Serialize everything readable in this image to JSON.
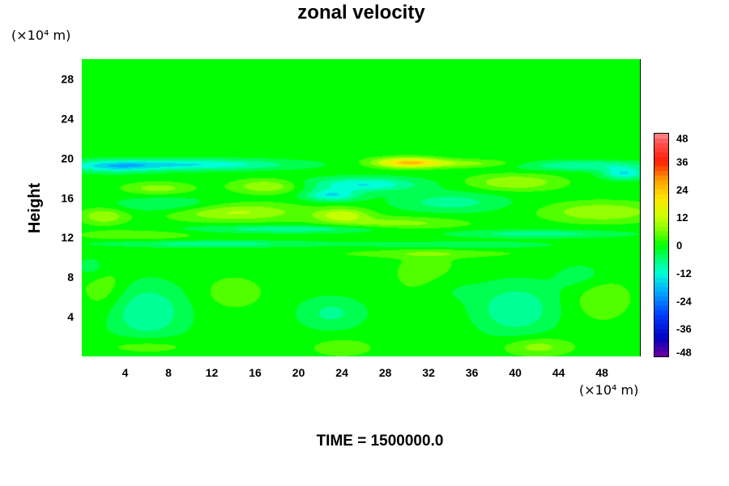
{
  "chart_data": {
    "type": "heatmap",
    "title": "zonal velocity",
    "xlabel": "",
    "ylabel": "Height",
    "x_unit": "(×10⁴ m)",
    "y_unit": "(×10⁴ m)",
    "xlim": [
      0,
      51.5
    ],
    "ylim": [
      0,
      30
    ],
    "x_ticks": [
      4,
      8,
      12,
      16,
      20,
      24,
      28,
      32,
      36,
      40,
      44,
      48
    ],
    "y_ticks": [
      4,
      8,
      12,
      16,
      20,
      24,
      28
    ],
    "colorbar": {
      "min": -48,
      "max": 48,
      "ticks": [
        48,
        36,
        24,
        12,
        0,
        -12,
        -24,
        -36,
        -48
      ]
    },
    "grid": false,
    "background_value": 0,
    "features": [
      {
        "x": 30,
        "y": 19.6,
        "sx": 3,
        "sy": 0.5,
        "v": 22
      },
      {
        "x": 35,
        "y": 19.5,
        "sx": 5,
        "sy": 0.4,
        "v": 8
      },
      {
        "x": 10,
        "y": 19.4,
        "sx": 9,
        "sy": 0.55,
        "v": -14
      },
      {
        "x": 3,
        "y": 19.2,
        "sx": 4,
        "sy": 0.6,
        "v": -12
      },
      {
        "x": 46,
        "y": 19.3,
        "sx": 6,
        "sy": 0.5,
        "v": -10
      },
      {
        "x": 50,
        "y": 18.5,
        "sx": 2,
        "sy": 0.6,
        "v": -14
      },
      {
        "x": 26,
        "y": 17.4,
        "sx": 5,
        "sy": 0.7,
        "v": -14
      },
      {
        "x": 23,
        "y": 16.3,
        "sx": 2.5,
        "sy": 0.6,
        "v": -14
      },
      {
        "x": 17,
        "y": 17.2,
        "sx": 3,
        "sy": 0.7,
        "v": 10
      },
      {
        "x": 40,
        "y": 17.6,
        "sx": 4,
        "sy": 0.8,
        "v": 10
      },
      {
        "x": 7,
        "y": 17.0,
        "sx": 3,
        "sy": 0.6,
        "v": 8
      },
      {
        "x": 14,
        "y": 14.6,
        "sx": 6,
        "sy": 0.9,
        "v": 11
      },
      {
        "x": 2,
        "y": 14.2,
        "sx": 2,
        "sy": 0.8,
        "v": 10
      },
      {
        "x": 24,
        "y": 14.3,
        "sx": 2.5,
        "sy": 0.7,
        "v": 12
      },
      {
        "x": 29,
        "y": 13.4,
        "sx": 6,
        "sy": 0.7,
        "v": 8
      },
      {
        "x": 48,
        "y": 14.6,
        "sx": 5,
        "sy": 1.0,
        "v": 10
      },
      {
        "x": 34,
        "y": 15.6,
        "sx": 5,
        "sy": 1.0,
        "v": -8
      },
      {
        "x": 8,
        "y": 15.3,
        "sx": 5,
        "sy": 0.8,
        "v": -7
      },
      {
        "x": 20,
        "y": 12.9,
        "sx": 10,
        "sy": 0.4,
        "v": -9
      },
      {
        "x": 42,
        "y": 12.4,
        "sx": 8,
        "sy": 0.4,
        "v": -8
      },
      {
        "x": 12,
        "y": 11.4,
        "sx": 10,
        "sy": 0.35,
        "v": -8
      },
      {
        "x": 35,
        "y": 11.3,
        "sx": 8,
        "sy": 0.35,
        "v": -6
      },
      {
        "x": 5,
        "y": 12.3,
        "sx": 5,
        "sy": 0.5,
        "v": 6
      },
      {
        "x": 32,
        "y": 10.4,
        "sx": 8,
        "sy": 0.4,
        "v": 5
      },
      {
        "x": 6,
        "y": 4.5,
        "sx": 3.5,
        "sy": 2.8,
        "v": -10
      },
      {
        "x": 23,
        "y": 4.4,
        "sx": 3,
        "sy": 1.6,
        "v": -7
      },
      {
        "x": 40,
        "y": 4.8,
        "sx": 3.5,
        "sy": 2.5,
        "v": -10
      },
      {
        "x": 47,
        "y": 8.0,
        "sx": 3,
        "sy": 1.6,
        "v": -6
      },
      {
        "x": 33,
        "y": 7.0,
        "sx": 3,
        "sy": 1.8,
        "v": -6
      },
      {
        "x": 14,
        "y": 6.5,
        "sx": 3,
        "sy": 1.8,
        "v": 4
      },
      {
        "x": 32,
        "y": 7.8,
        "sx": 3,
        "sy": 2.5,
        "v": 7
      },
      {
        "x": 48,
        "y": 6.5,
        "sx": 2.5,
        "sy": 2.5,
        "v": 7
      },
      {
        "x": 2,
        "y": 7.0,
        "sx": 2,
        "sy": 2.5,
        "v": 5
      },
      {
        "x": 1,
        "y": 9.0,
        "sx": 1.5,
        "sy": 1.2,
        "v": -5
      },
      {
        "x": 42,
        "y": 1.0,
        "sx": 3,
        "sy": 0.9,
        "v": 8
      },
      {
        "x": 24,
        "y": 0.9,
        "sx": 2.5,
        "sy": 0.8,
        "v": 6
      },
      {
        "x": 6,
        "y": 1.1,
        "sx": 4,
        "sy": 0.9,
        "v": 5
      }
    ]
  },
  "footer": {
    "time_label": "TIME = 1500000.0"
  },
  "colors": {
    "background_field": "#00ff00",
    "axis": "#000000"
  }
}
